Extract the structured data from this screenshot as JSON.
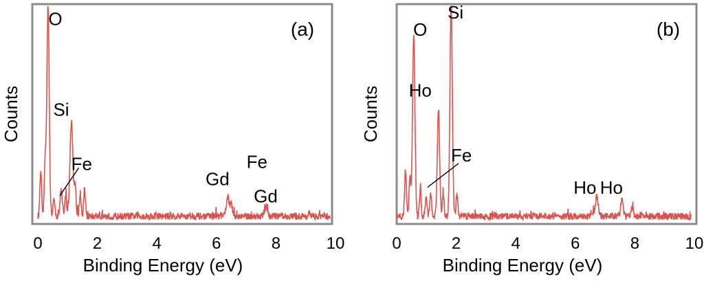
{
  "chart_data": [
    {
      "type": "line",
      "panel_label": "(a)",
      "title": "",
      "xlabel": "Binding Energy (eV)",
      "ylabel": "Counts",
      "xlim": [
        0,
        10
      ],
      "ylim": [
        0,
        100
      ],
      "x_ticks": [
        "0",
        "2",
        "4",
        "6",
        "8",
        "10"
      ],
      "line_color": "#d9534f",
      "peaks": [
        {
          "x": 0.1,
          "y": 22,
          "w": 0.03
        },
        {
          "x": 0.25,
          "y": 25,
          "w": 0.03
        },
        {
          "x": 0.35,
          "y": 98,
          "w": 0.04
        },
        {
          "x": 0.55,
          "y": 8,
          "w": 0.03
        },
        {
          "x": 0.8,
          "y": 12,
          "w": 0.04
        },
        {
          "x": 0.95,
          "y": 10,
          "w": 0.03
        },
        {
          "x": 1.15,
          "y": 44,
          "w": 0.05
        },
        {
          "x": 1.28,
          "y": 14,
          "w": 0.03
        },
        {
          "x": 1.45,
          "y": 10,
          "w": 0.03
        },
        {
          "x": 1.6,
          "y": 13,
          "w": 0.03
        },
        {
          "x": 6.5,
          "y": 9,
          "w": 0.05
        },
        {
          "x": 6.62,
          "y": 5,
          "w": 0.04
        },
        {
          "x": 7.8,
          "y": 4,
          "w": 0.05
        }
      ],
      "annotations": [
        {
          "text": "O",
          "x": 0.6,
          "y": 91
        },
        {
          "text": "Si",
          "x": 0.8,
          "y": 49
        },
        {
          "text": "Fe",
          "x": 1.5,
          "y": 24
        },
        {
          "text": "Gd",
          "x": 6.15,
          "y": 17
        },
        {
          "text": "Fe",
          "x": 7.5,
          "y": 25
        },
        {
          "text": "Gd",
          "x": 7.8,
          "y": 9
        }
      ],
      "leader_line": {
        "from": [
          0.75,
          12
        ],
        "to": [
          1.4,
          25
        ]
      }
    },
    {
      "type": "line",
      "panel_label": "(b)",
      "title": "",
      "xlabel": "Binding Energy (eV)",
      "ylabel": "Counts",
      "xlim": [
        0,
        10
      ],
      "ylim": [
        0,
        100
      ],
      "x_ticks": [
        "0",
        "2",
        "4",
        "6",
        "8",
        "10"
      ],
      "line_color": "#d9534f",
      "peaks": [
        {
          "x": 0.3,
          "y": 22,
          "w": 0.03
        },
        {
          "x": 0.45,
          "y": 18,
          "w": 0.03
        },
        {
          "x": 0.58,
          "y": 85,
          "w": 0.04
        },
        {
          "x": 0.8,
          "y": 12,
          "w": 0.03
        },
        {
          "x": 1.0,
          "y": 9,
          "w": 0.03
        },
        {
          "x": 1.15,
          "y": 10,
          "w": 0.03
        },
        {
          "x": 1.42,
          "y": 48,
          "w": 0.04
        },
        {
          "x": 1.58,
          "y": 10,
          "w": 0.03
        },
        {
          "x": 1.85,
          "y": 98,
          "w": 0.04
        },
        {
          "x": 2.05,
          "y": 10,
          "w": 0.03
        },
        {
          "x": 6.8,
          "y": 9,
          "w": 0.05
        },
        {
          "x": 7.65,
          "y": 8,
          "w": 0.04
        },
        {
          "x": 8.0,
          "y": 4,
          "w": 0.04
        }
      ],
      "annotations": [
        {
          "text": "O",
          "x": 0.8,
          "y": 86
        },
        {
          "text": "Si",
          "x": 2.0,
          "y": 94
        },
        {
          "text": "Ho",
          "x": 0.8,
          "y": 58
        },
        {
          "text": "Fe",
          "x": 2.2,
          "y": 28
        },
        {
          "text": "Ho",
          "x": 6.4,
          "y": 13
        },
        {
          "text": "Ho",
          "x": 7.3,
          "y": 13
        }
      ],
      "leader_line": {
        "from": [
          1.05,
          16
        ],
        "to": [
          2.1,
          27
        ]
      }
    }
  ]
}
